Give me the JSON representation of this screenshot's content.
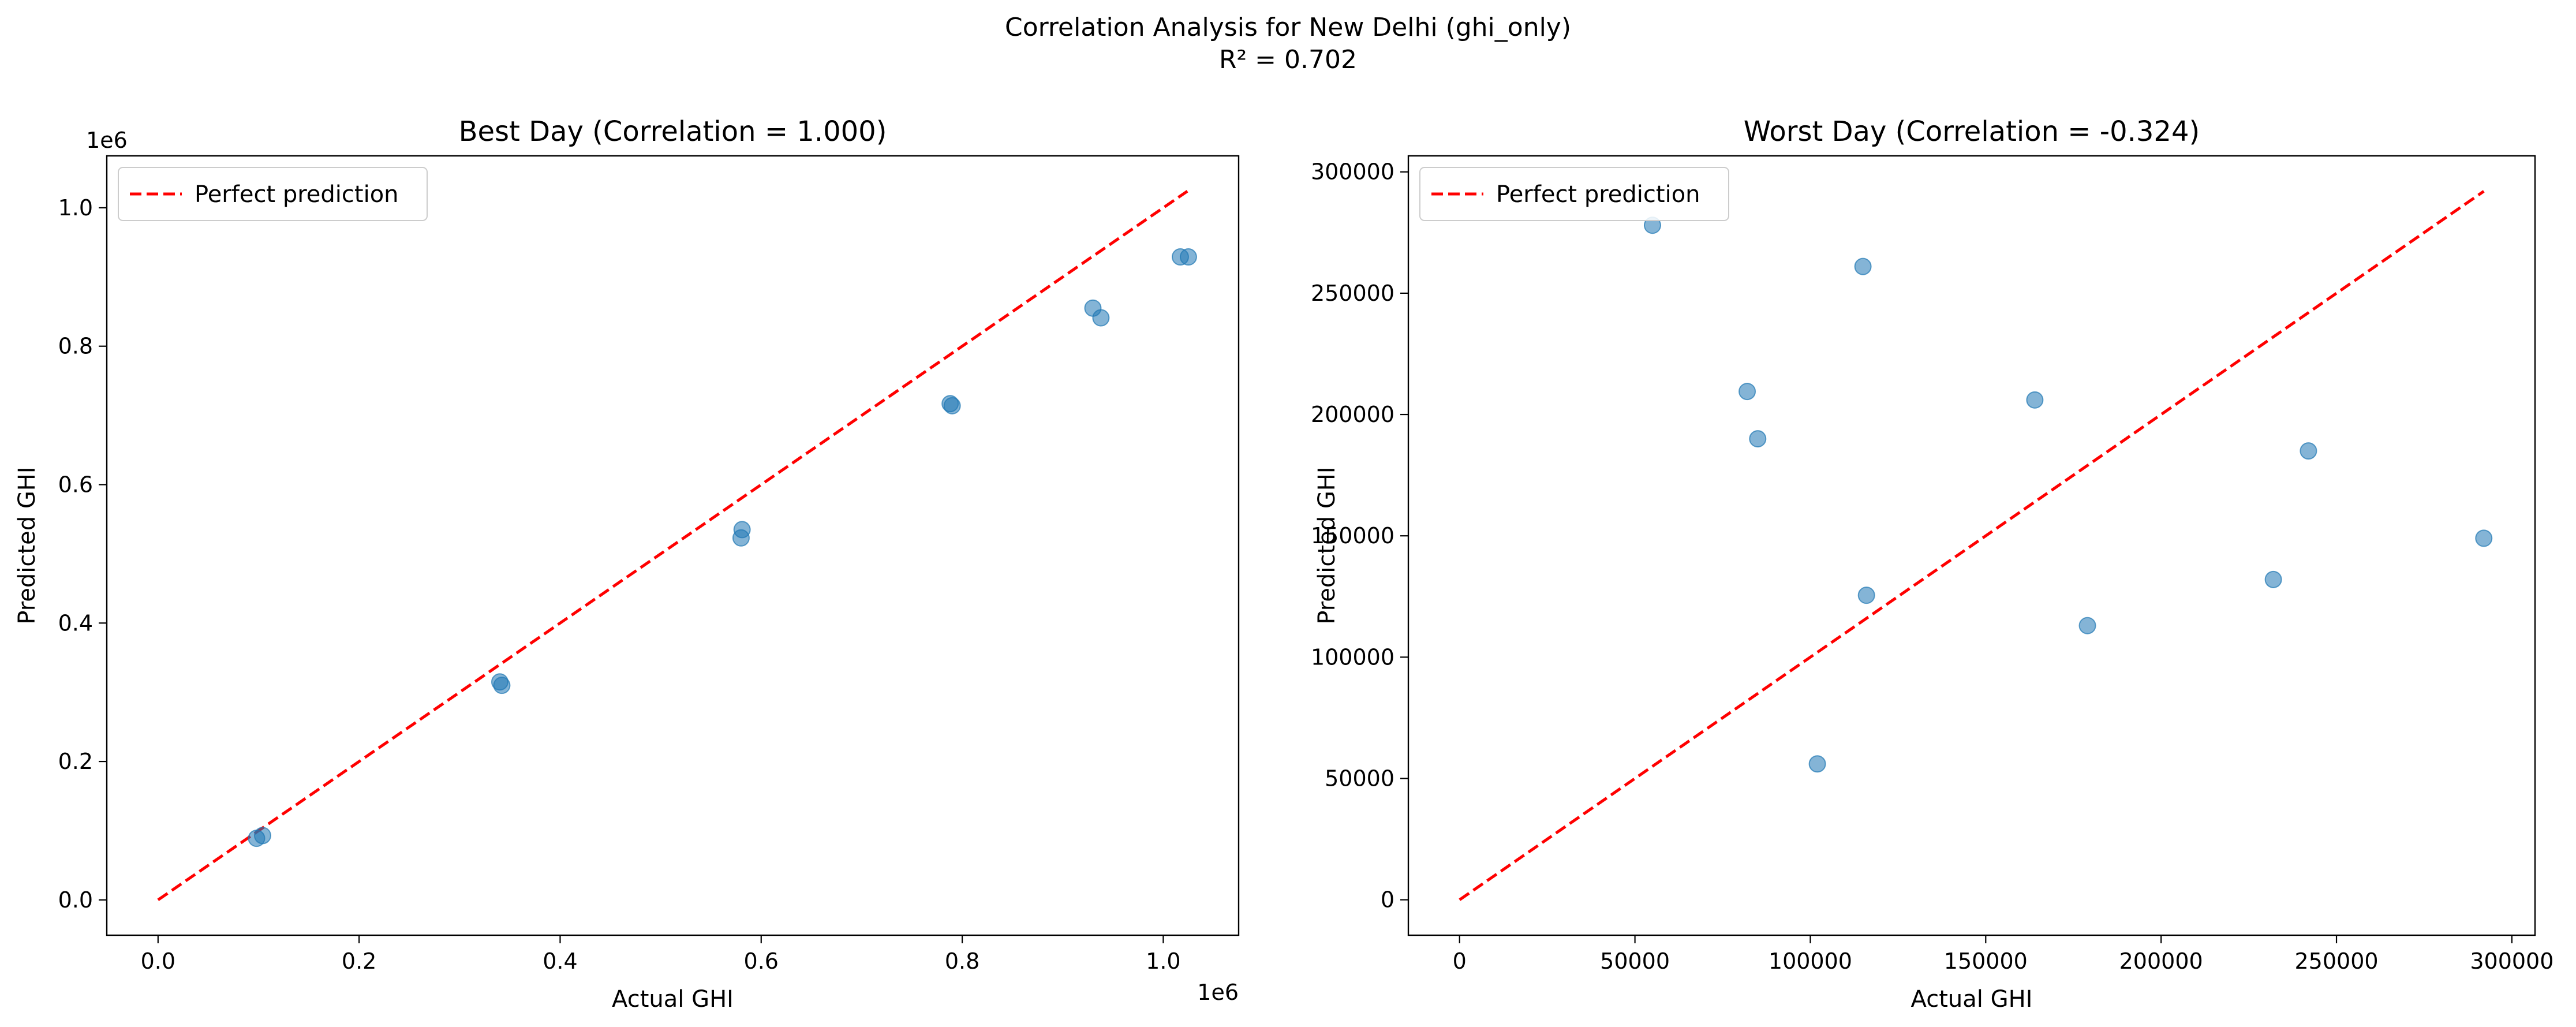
{
  "figure": {
    "suptitle": "Correlation Analysis for New Delhi (ghi_only)",
    "subtitle": "R² = 0.702"
  },
  "chart_data": [
    {
      "type": "scatter",
      "title": "Best Day (Correlation = 1.000)",
      "xlabel": "Actual GHI",
      "ylabel": "Predicted GHI",
      "x_offset_label": "1e6",
      "y_offset_label": "1e6",
      "xlim": [
        -0.051,
        1.075
      ],
      "ylim": [
        -0.051,
        1.075
      ],
      "x_ticks": [
        0.0,
        0.2,
        0.4,
        0.6,
        0.8,
        1.0
      ],
      "x_tick_labels": [
        "0.0",
        "0.2",
        "0.4",
        "0.6",
        "0.8",
        "1.0"
      ],
      "y_ticks": [
        0.0,
        0.2,
        0.4,
        0.6,
        0.8,
        1.0
      ],
      "y_tick_labels": [
        "0.0",
        "0.2",
        "0.4",
        "0.6",
        "0.8",
        "1.0"
      ],
      "grid": false,
      "legend_position": "upper-left",
      "legend": [
        {
          "label": "Perfect prediction",
          "style": "dashed",
          "color": "#ff0000"
        }
      ],
      "reference_line": {
        "x": [
          0.0,
          1.024
        ],
        "y": [
          0.0,
          1.024
        ],
        "color": "#ff0000",
        "style": "dashed"
      },
      "point_color": "#1f77b4",
      "points": [
        {
          "x": 0.098,
          "y": 0.089
        },
        {
          "x": 0.104,
          "y": 0.093
        },
        {
          "x": 0.34,
          "y": 0.315
        },
        {
          "x": 0.342,
          "y": 0.31
        },
        {
          "x": 0.581,
          "y": 0.535
        },
        {
          "x": 0.58,
          "y": 0.523
        },
        {
          "x": 0.788,
          "y": 0.717
        },
        {
          "x": 0.79,
          "y": 0.714
        },
        {
          "x": 0.93,
          "y": 0.855
        },
        {
          "x": 0.938,
          "y": 0.841
        },
        {
          "x": 1.017,
          "y": 0.929
        },
        {
          "x": 1.025,
          "y": 0.929
        }
      ]
    },
    {
      "type": "scatter",
      "title": "Worst Day (Correlation = -0.324)",
      "xlabel": "Actual GHI",
      "ylabel": "Predicted GHI",
      "xlim": [
        -14600,
        306600
      ],
      "ylim": [
        -14600,
        306600
      ],
      "x_ticks": [
        0,
        50000,
        100000,
        150000,
        200000,
        250000,
        300000
      ],
      "x_tick_labels": [
        "0",
        "50000",
        "100000",
        "150000",
        "200000",
        "250000",
        "300000"
      ],
      "y_ticks": [
        0,
        50000,
        100000,
        150000,
        200000,
        250000,
        300000
      ],
      "y_tick_labels": [
        "0",
        "50000",
        "100000",
        "150000",
        "200000",
        "250000",
        "300000"
      ],
      "grid": false,
      "legend_position": "upper-left",
      "legend": [
        {
          "label": "Perfect prediction",
          "style": "dashed",
          "color": "#ff0000"
        }
      ],
      "reference_line": {
        "x": [
          0,
          292000
        ],
        "y": [
          0,
          292000
        ],
        "color": "#ff0000",
        "style": "dashed"
      },
      "point_color": "#1f77b4",
      "points": [
        {
          "x": 55000,
          "y": 278000
        },
        {
          "x": 82000,
          "y": 209500
        },
        {
          "x": 85000,
          "y": 190000
        },
        {
          "x": 102000,
          "y": 56000
        },
        {
          "x": 115000,
          "y": 261000
        },
        {
          "x": 116000,
          "y": 125500
        },
        {
          "x": 164000,
          "y": 206000
        },
        {
          "x": 179000,
          "y": 113000
        },
        {
          "x": 232000,
          "y": 132000
        },
        {
          "x": 242000,
          "y": 185000
        },
        {
          "x": 292000,
          "y": 149000
        }
      ]
    }
  ]
}
